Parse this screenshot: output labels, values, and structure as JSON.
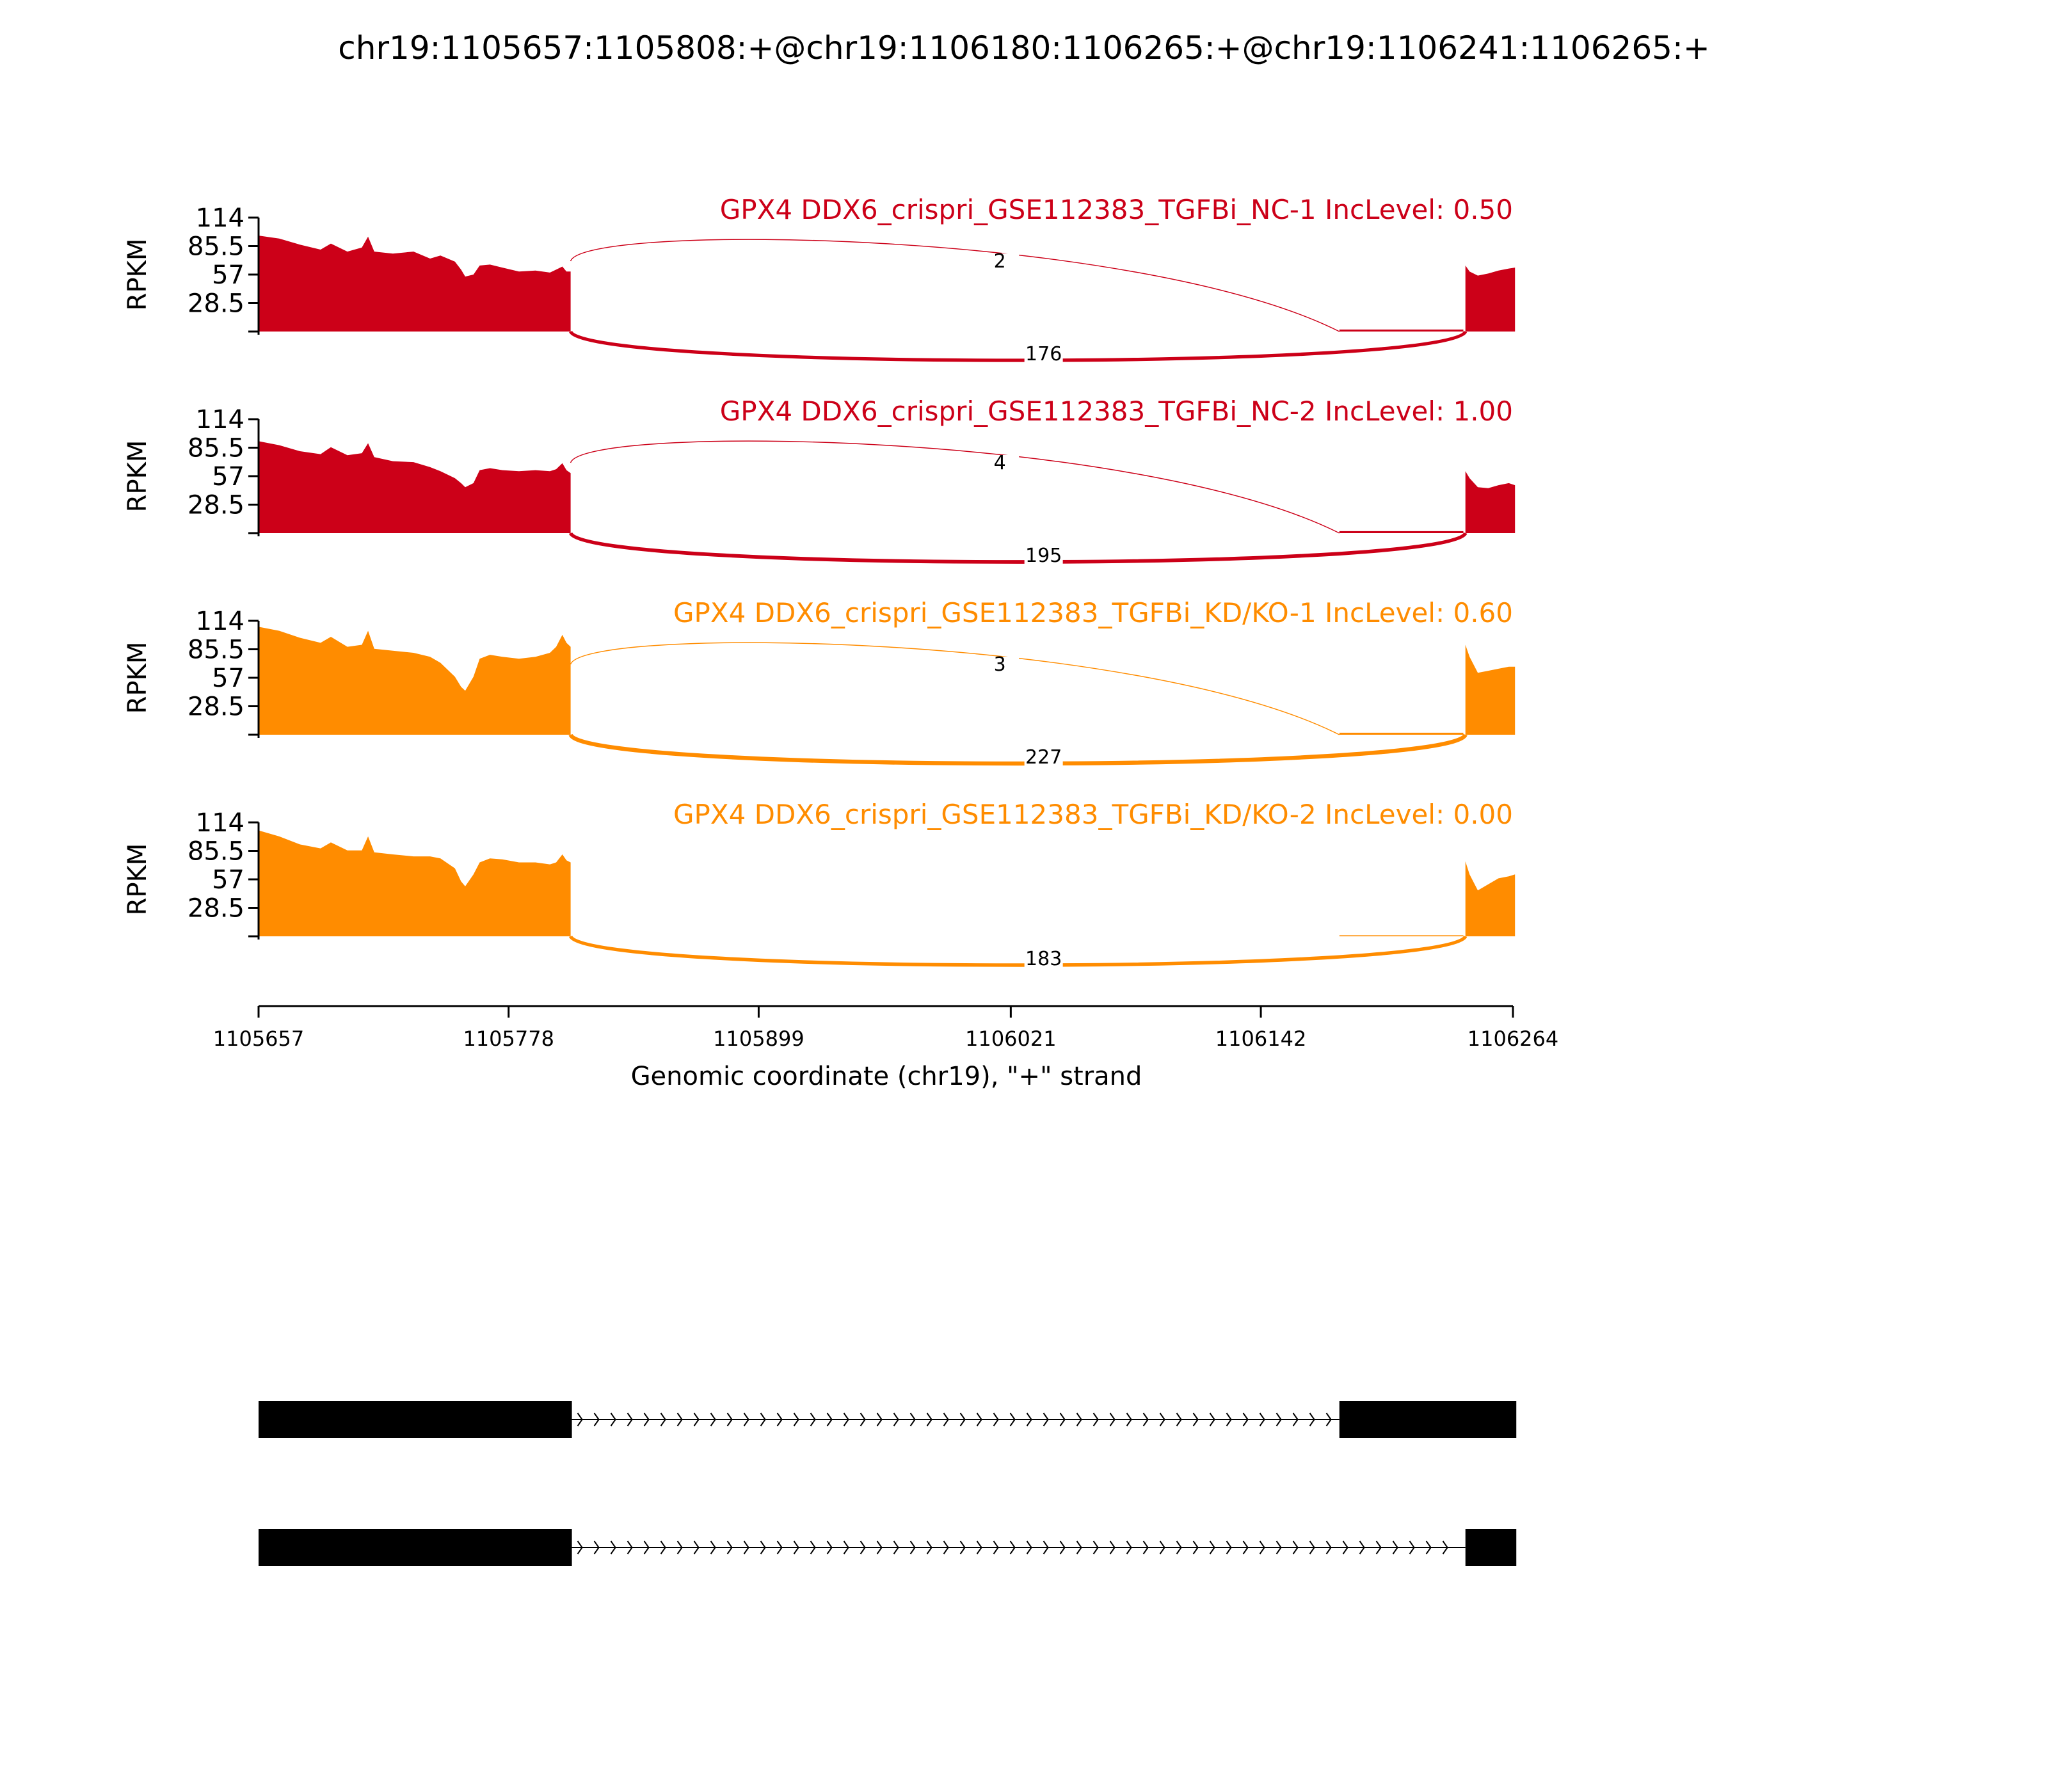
{
  "title": "chr19:1105657:1105808:+@chr19:1106180:1106265:+@chr19:1106241:1106265:+",
  "colors": {
    "nc": "#CC0018",
    "kd": "#FF8C00",
    "axis": "#000000",
    "exon": "#000000"
  },
  "chart_data": {
    "type": "area",
    "subtype": "sashimi",
    "xlabel": "Genomic coordinate (chr19), \"+\" strand",
    "ylabel": "RPKM",
    "x_ticks": [
      1105657,
      1105778,
      1105899,
      1106021,
      1106142,
      1106264
    ],
    "xlim": [
      1105657,
      1106264
    ],
    "y_ticks": [
      "114",
      "85.5",
      "57",
      "28.5"
    ],
    "ylim": [
      0,
      114
    ],
    "exons": {
      "upstream": [
        1105657,
        1105808
      ],
      "skipped": [
        1106180,
        1106265
      ],
      "downstream": [
        1106241,
        1106265
      ]
    },
    "samples": [
      {
        "label": "GPX4 DDX6_crispri_GSE112383_TGFBi_NC-1 IncLevel: 0.50",
        "group": "nc",
        "coverage": [
          [
            1105657,
            96
          ],
          [
            1105667,
            93
          ],
          [
            1105677,
            87
          ],
          [
            1105687,
            82
          ],
          [
            1105692,
            88
          ],
          [
            1105700,
            80
          ],
          [
            1105707,
            84
          ],
          [
            1105710,
            95
          ],
          [
            1105713,
            80
          ],
          [
            1105722,
            78
          ],
          [
            1105732,
            80
          ],
          [
            1105740,
            73
          ],
          [
            1105745,
            76
          ],
          [
            1105752,
            70
          ],
          [
            1105755,
            62
          ],
          [
            1105757,
            55
          ],
          [
            1105761,
            57
          ],
          [
            1105764,
            66
          ],
          [
            1105769,
            67
          ],
          [
            1105775,
            64
          ],
          [
            1105783,
            60
          ],
          [
            1105791,
            61
          ],
          [
            1105798,
            59
          ],
          [
            1105801,
            62
          ],
          [
            1105804,
            65
          ],
          [
            1105806,
            60
          ],
          [
            1105808,
            60
          ]
        ],
        "coverage_skipped": [
          [
            1106180,
            2
          ],
          [
            1106240,
            2
          ]
        ],
        "coverage_downstream": [
          [
            1106241,
            66
          ],
          [
            1106243,
            60
          ],
          [
            1106247,
            56
          ],
          [
            1106252,
            58
          ],
          [
            1106257,
            61
          ],
          [
            1106262,
            63
          ],
          [
            1106265,
            64
          ]
        ],
        "junctions": [
          {
            "start": 1105808,
            "end": 1106180,
            "count": 2,
            "count_label": "2",
            "side": "above"
          },
          {
            "start": 1105808,
            "end": 1106241,
            "count": 176,
            "count_label": "176",
            "side": "below"
          }
        ]
      },
      {
        "label": "GPX4 DDX6_crispri_GSE112383_TGFBi_NC-2 IncLevel: 1.00",
        "group": "nc",
        "coverage": [
          [
            1105657,
            92
          ],
          [
            1105667,
            88
          ],
          [
            1105677,
            82
          ],
          [
            1105687,
            79
          ],
          [
            1105692,
            86
          ],
          [
            1105700,
            78
          ],
          [
            1105707,
            80
          ],
          [
            1105710,
            90
          ],
          [
            1105713,
            76
          ],
          [
            1105722,
            72
          ],
          [
            1105732,
            71
          ],
          [
            1105740,
            66
          ],
          [
            1105745,
            62
          ],
          [
            1105752,
            55
          ],
          [
            1105755,
            50
          ],
          [
            1105757,
            46
          ],
          [
            1105761,
            50
          ],
          [
            1105764,
            63
          ],
          [
            1105769,
            65
          ],
          [
            1105775,
            63
          ],
          [
            1105783,
            62
          ],
          [
            1105791,
            63
          ],
          [
            1105798,
            62
          ],
          [
            1105801,
            64
          ],
          [
            1105804,
            70
          ],
          [
            1105806,
            63
          ],
          [
            1105808,
            60
          ]
        ],
        "coverage_skipped": [
          [
            1106180,
            2
          ],
          [
            1106240,
            2
          ]
        ],
        "coverage_downstream": [
          [
            1106241,
            62
          ],
          [
            1106243,
            55
          ],
          [
            1106247,
            46
          ],
          [
            1106252,
            45
          ],
          [
            1106257,
            48
          ],
          [
            1106262,
            50
          ],
          [
            1106265,
            48
          ]
        ],
        "junctions": [
          {
            "start": 1105808,
            "end": 1106180,
            "count": 4,
            "count_label": "4",
            "side": "above"
          },
          {
            "start": 1105808,
            "end": 1106241,
            "count": 195,
            "count_label": "195",
            "side": "below"
          }
        ]
      },
      {
        "label": "GPX4 DDX6_crispri_GSE112383_TGFBi_KD/KO-1 IncLevel: 0.60",
        "group": "kd",
        "coverage": [
          [
            1105657,
            108
          ],
          [
            1105667,
            104
          ],
          [
            1105677,
            97
          ],
          [
            1105687,
            92
          ],
          [
            1105692,
            98
          ],
          [
            1105700,
            88
          ],
          [
            1105707,
            90
          ],
          [
            1105710,
            104
          ],
          [
            1105713,
            86
          ],
          [
            1105722,
            84
          ],
          [
            1105732,
            82
          ],
          [
            1105740,
            78
          ],
          [
            1105745,
            72
          ],
          [
            1105752,
            58
          ],
          [
            1105755,
            48
          ],
          [
            1105757,
            44
          ],
          [
            1105761,
            58
          ],
          [
            1105764,
            76
          ],
          [
            1105769,
            80
          ],
          [
            1105775,
            78
          ],
          [
            1105783,
            76
          ],
          [
            1105791,
            78
          ],
          [
            1105798,
            82
          ],
          [
            1105801,
            88
          ],
          [
            1105804,
            100
          ],
          [
            1105806,
            92
          ],
          [
            1105808,
            88
          ]
        ],
        "coverage_skipped": [
          [
            1106180,
            2
          ],
          [
            1106240,
            2
          ]
        ],
        "coverage_downstream": [
          [
            1106241,
            90
          ],
          [
            1106243,
            78
          ],
          [
            1106247,
            62
          ],
          [
            1106252,
            64
          ],
          [
            1106257,
            66
          ],
          [
            1106262,
            68
          ],
          [
            1106265,
            68
          ]
        ],
        "junctions": [
          {
            "start": 1105808,
            "end": 1106180,
            "count": 3,
            "count_label": "3",
            "side": "above"
          },
          {
            "start": 1105808,
            "end": 1106241,
            "count": 227,
            "count_label": "227",
            "side": "below"
          }
        ]
      },
      {
        "label": "GPX4 DDX6_crispri_GSE112383_TGFBi_KD/KO-2 IncLevel: 0.00",
        "group": "kd",
        "coverage": [
          [
            1105657,
            106
          ],
          [
            1105667,
            100
          ],
          [
            1105677,
            92
          ],
          [
            1105687,
            88
          ],
          [
            1105692,
            94
          ],
          [
            1105700,
            86
          ],
          [
            1105707,
            86
          ],
          [
            1105710,
            100
          ],
          [
            1105713,
            84
          ],
          [
            1105722,
            82
          ],
          [
            1105732,
            80
          ],
          [
            1105740,
            80
          ],
          [
            1105745,
            78
          ],
          [
            1105752,
            68
          ],
          [
            1105755,
            55
          ],
          [
            1105757,
            50
          ],
          [
            1105761,
            62
          ],
          [
            1105764,
            74
          ],
          [
            1105769,
            78
          ],
          [
            1105775,
            77
          ],
          [
            1105783,
            74
          ],
          [
            1105791,
            74
          ],
          [
            1105798,
            72
          ],
          [
            1105801,
            74
          ],
          [
            1105804,
            82
          ],
          [
            1105806,
            76
          ],
          [
            1105808,
            74
          ]
        ],
        "coverage_skipped": [
          [
            1106180,
            1
          ],
          [
            1106240,
            1
          ]
        ],
        "coverage_downstream": [
          [
            1106241,
            75
          ],
          [
            1106243,
            62
          ],
          [
            1106247,
            46
          ],
          [
            1106252,
            52
          ],
          [
            1106257,
            58
          ],
          [
            1106262,
            60
          ],
          [
            1106265,
            62
          ]
        ],
        "junctions": [
          {
            "start": 1105808,
            "end": 1106241,
            "count": 183,
            "count_label": "183",
            "side": "below"
          }
        ]
      }
    ],
    "isoforms": [
      {
        "exons": [
          [
            1105657,
            1105808
          ],
          [
            1106180,
            1106265
          ]
        ]
      },
      {
        "exons": [
          [
            1105657,
            1105808
          ],
          [
            1106241,
            1106265
          ]
        ]
      }
    ]
  }
}
